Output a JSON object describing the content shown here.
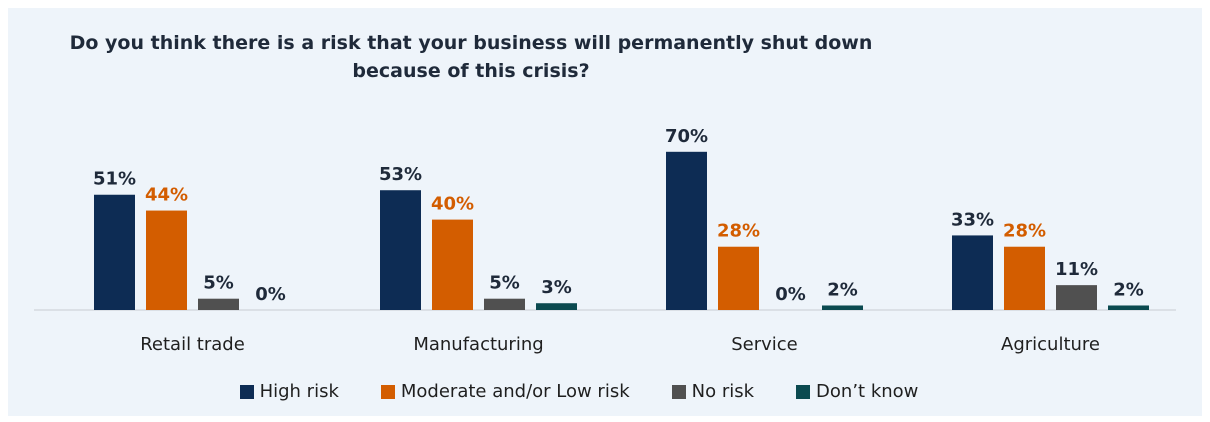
{
  "chart_data": {
    "type": "bar",
    "title": "Do you think there is a risk that your business will permanently shut down because of this crisis?",
    "title_lines": [
      "Do you think there is a risk that your business will permanently shut down",
      "because of this crisis?"
    ],
    "categories": [
      "Retail trade",
      "Manufacturing",
      "Service",
      "Agriculture"
    ],
    "series": [
      {
        "name": "High risk",
        "color": "#0d2c54",
        "values": [
          51,
          53,
          70,
          33
        ],
        "labels": [
          "51%",
          "53%",
          "70%",
          "33%"
        ],
        "label_color": "#1f2a3a"
      },
      {
        "name": "Moderate and/or Low risk",
        "color": "#d35d00",
        "values": [
          44,
          40,
          28,
          28
        ],
        "labels": [
          "44%",
          "40%",
          "28%",
          "28%"
        ],
        "label_color": "#d35d00"
      },
      {
        "name": "No risk",
        "color": "#505050",
        "values": [
          5,
          5,
          0,
          11
        ],
        "labels": [
          "5%",
          "5%",
          "0%",
          "11%"
        ],
        "label_color": "#1f2a3a"
      },
      {
        "name": "Don’t know",
        "color": "#0b4a50",
        "values": [
          0,
          3,
          2,
          2
        ],
        "labels": [
          "0%",
          "3%",
          "2%",
          "2%"
        ],
        "label_color": "#1f2a3a"
      }
    ],
    "ylim": [
      0,
      70
    ],
    "grid": false,
    "legend_position": "bottom"
  }
}
